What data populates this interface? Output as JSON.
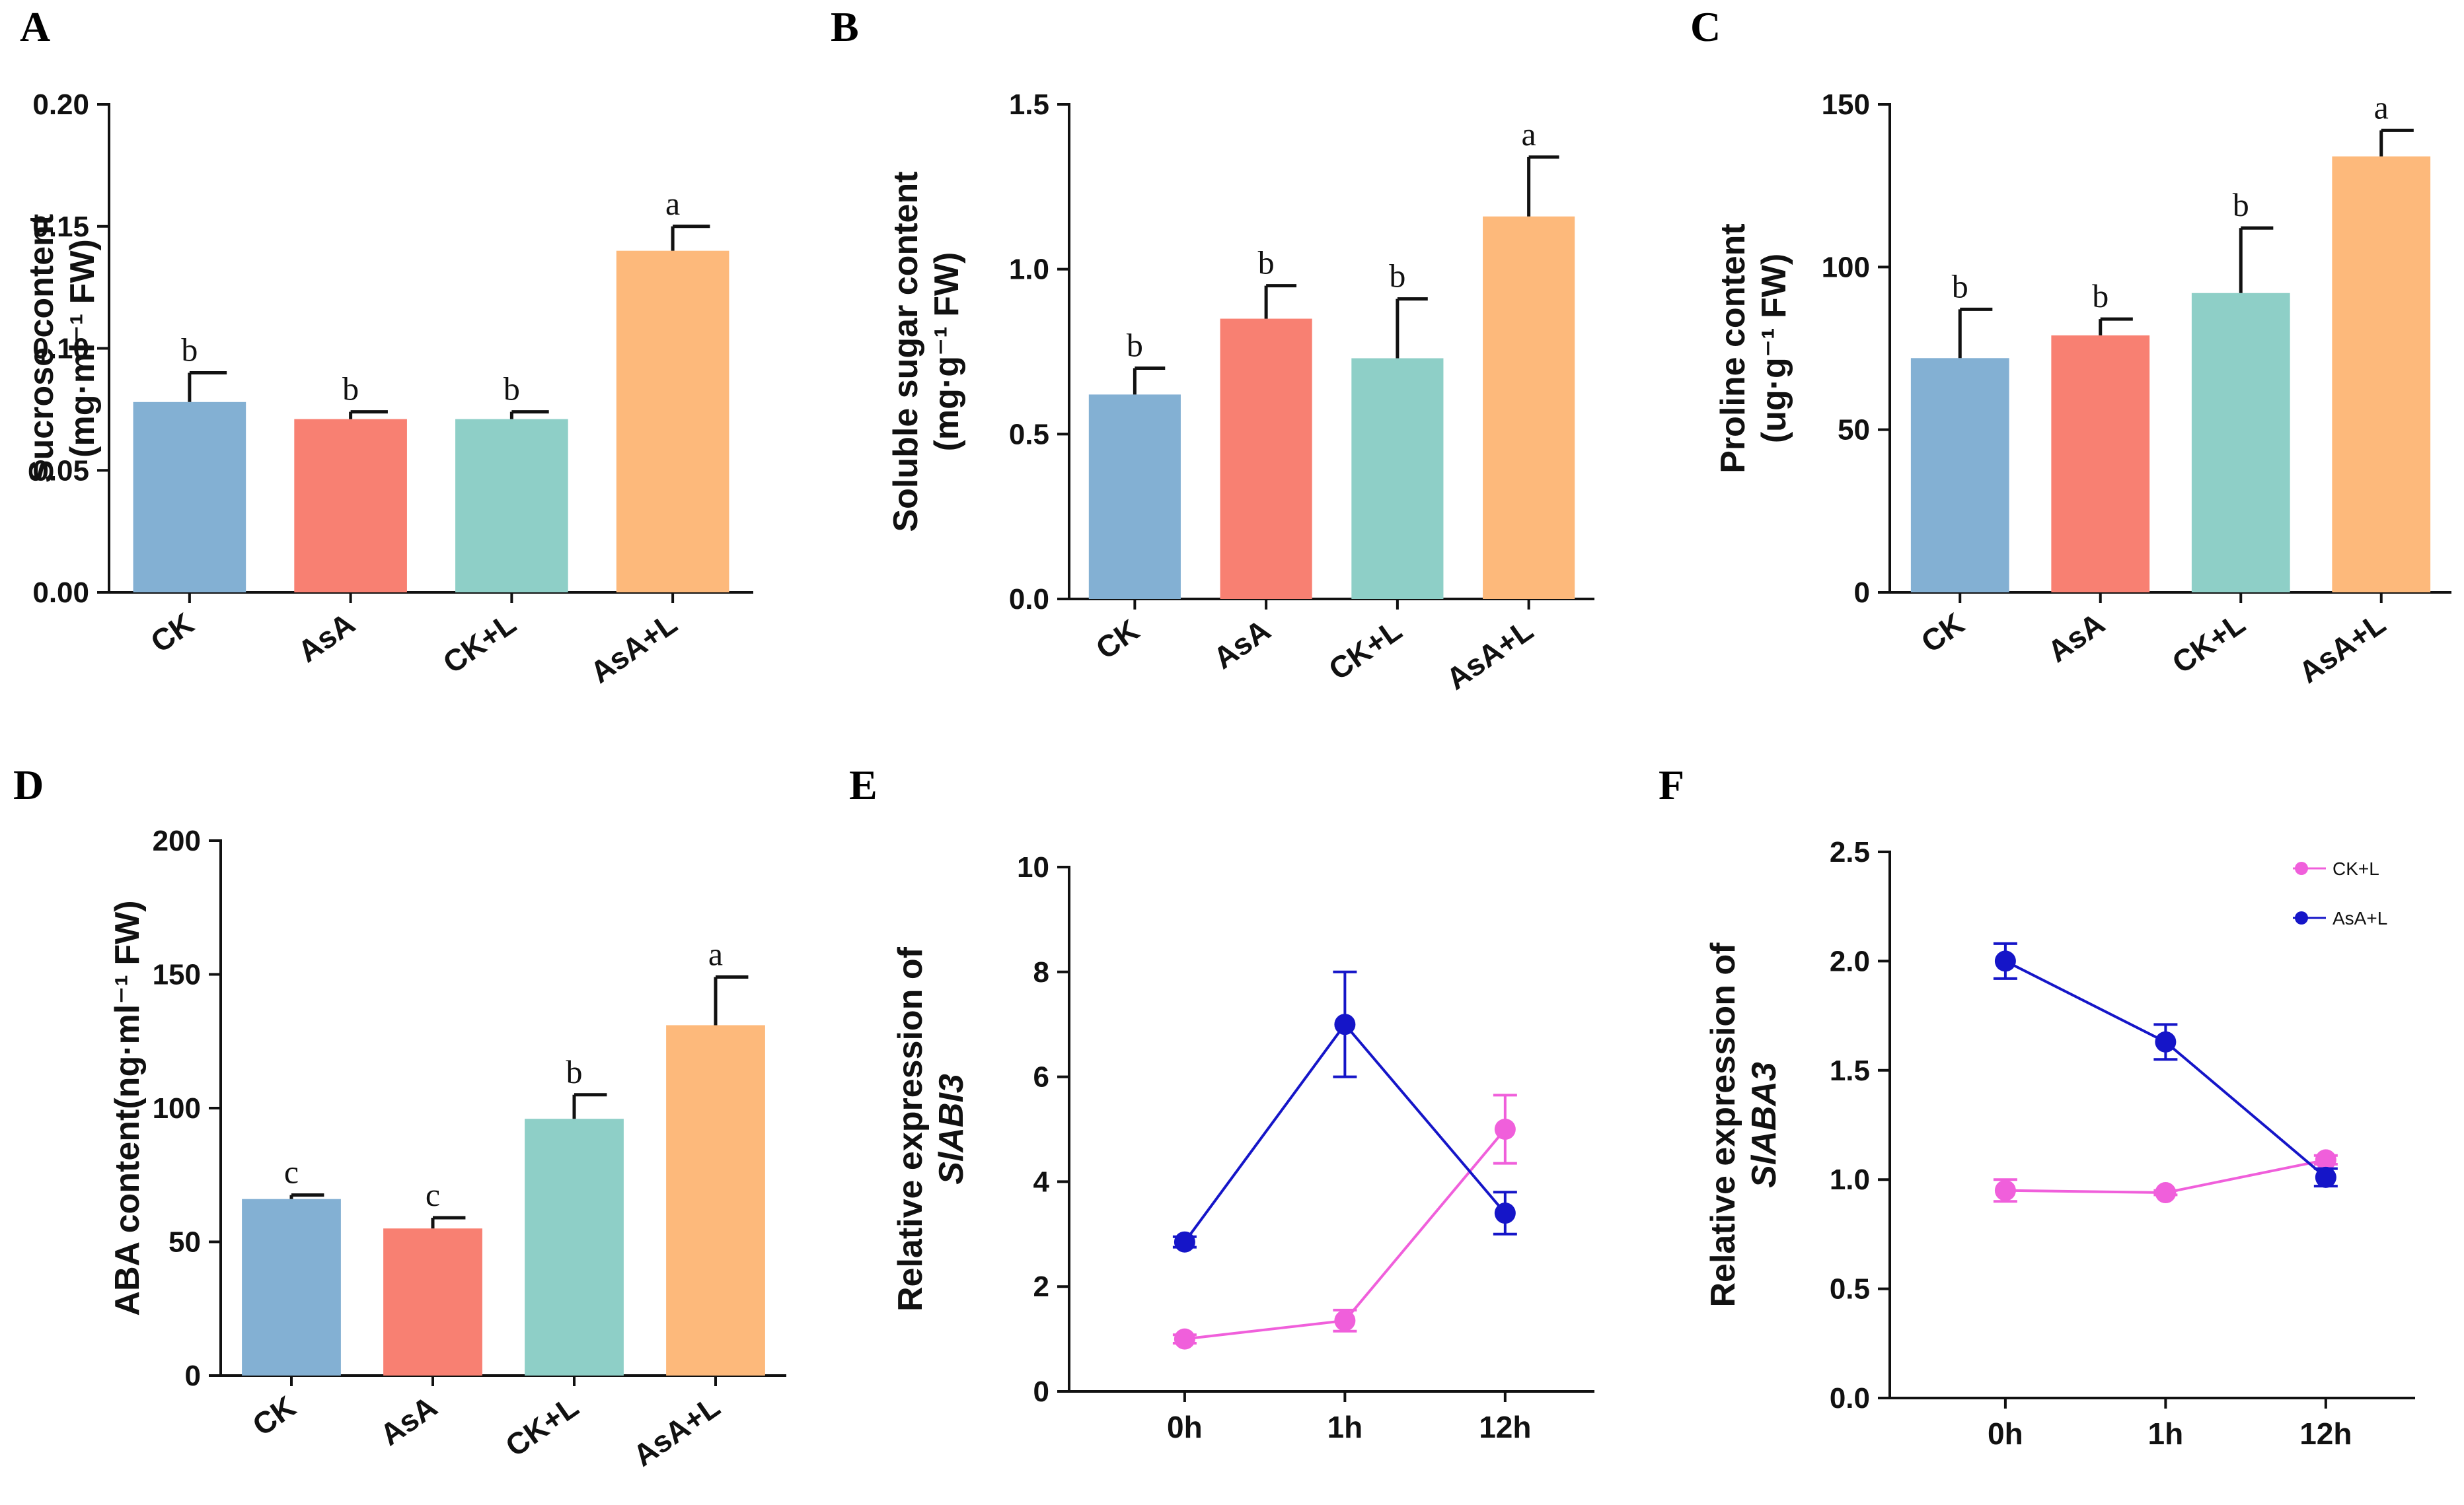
{
  "chart_data": [
    {
      "panel": "A",
      "type": "bar",
      "categories": [
        "CK",
        "AsA",
        "CK+L",
        "AsA+L"
      ],
      "values": [
        0.078,
        0.071,
        0.071,
        0.14
      ],
      "errors": [
        0.012,
        0.003,
        0.003,
        0.01
      ],
      "letters": [
        "b",
        "b",
        "b",
        "a"
      ],
      "ylabel_line1": "Sucrose content",
      "ylabel_line2": "(mg·ml⁻¹ FW)",
      "ylim": [
        0,
        0.2
      ],
      "yticks": [
        "0.00",
        "0.05",
        "0.10",
        "0.15",
        "0.20"
      ],
      "colors": [
        "#83B0D3",
        "#F88072",
        "#8ECFC7",
        "#FDB97B"
      ]
    },
    {
      "panel": "B",
      "type": "bar",
      "categories": [
        "CK",
        "AsA",
        "CK+L",
        "AsA+L"
      ],
      "values": [
        0.62,
        0.85,
        0.73,
        1.16
      ],
      "errors": [
        0.08,
        0.1,
        0.18,
        0.18
      ],
      "letters": [
        "b",
        "b",
        "b",
        "a"
      ],
      "ylabel_line1": "Soluble sugar content",
      "ylabel_line2": "(mg·g⁻¹ FW)",
      "ylim": [
        0,
        1.5
      ],
      "yticks": [
        "0.0",
        "0.5",
        "1.0",
        "1.5"
      ],
      "colors": [
        "#83B0D3",
        "#F88072",
        "#8ECFC7",
        "#FDB97B"
      ]
    },
    {
      "panel": "C",
      "type": "bar",
      "categories": [
        "CK",
        "AsA",
        "CK+L",
        "AsA+L"
      ],
      "values": [
        72,
        79,
        92,
        134
      ],
      "errors": [
        15,
        5,
        20,
        8
      ],
      "letters": [
        "b",
        "b",
        "b",
        "a"
      ],
      "ylabel_line1": "Proline content",
      "ylabel_line2": "(ug·g⁻¹ FW)",
      "ylim": [
        0,
        150
      ],
      "yticks": [
        "0",
        "50",
        "100",
        "150"
      ],
      "colors": [
        "#83B0D3",
        "#F88072",
        "#8ECFC7",
        "#FDB97B"
      ]
    },
    {
      "panel": "D",
      "type": "bar",
      "categories": [
        "CK",
        "AsA",
        "CK+L",
        "AsA+L"
      ],
      "values": [
        66,
        55,
        96,
        131
      ],
      "errors": [
        1.5,
        4,
        9,
        18
      ],
      "letters": [
        "c",
        "c",
        "b",
        "a"
      ],
      "ylabel_line1": "ABA content(ng·ml⁻¹ FW)",
      "ylabel_line2": "",
      "ylim": [
        0,
        200
      ],
      "yticks": [
        "0",
        "50",
        "100",
        "150",
        "200"
      ],
      "colors": [
        "#83B0D3",
        "#F88072",
        "#8ECFC7",
        "#FDB97B"
      ]
    },
    {
      "panel": "E",
      "type": "line",
      "x": [
        "0h",
        "1h",
        "12h"
      ],
      "series": [
        {
          "name": "CK+L",
          "color": "#F05FDB",
          "values": [
            1.0,
            1.35,
            5.0
          ],
          "errors": [
            0.08,
            0.2,
            0.65
          ]
        },
        {
          "name": "AsA+L",
          "color": "#1515C8",
          "values": [
            2.85,
            7.0,
            3.4
          ],
          "errors": [
            0.1,
            1.0,
            0.4
          ]
        }
      ],
      "ylabel_line1": "Relative expression of",
      "ylabel_line2": "SlABI3",
      "ylim": [
        0,
        10
      ],
      "yticks": [
        "0",
        "2",
        "4",
        "6",
        "8",
        "10"
      ]
    },
    {
      "panel": "F",
      "type": "line",
      "x": [
        "0h",
        "1h",
        "12h"
      ],
      "series": [
        {
          "name": "CK+L",
          "color": "#F05FDB",
          "values": [
            0.95,
            0.94,
            1.09
          ],
          "errors": [
            0.05,
            0.01,
            0.02
          ]
        },
        {
          "name": "AsA+L",
          "color": "#1515C8",
          "values": [
            2.0,
            1.63,
            1.01
          ],
          "errors": [
            0.08,
            0.08,
            0.04
          ]
        }
      ],
      "ylabel_line1": "Relative expression of",
      "ylabel_line2": "SlABA3",
      "ylim": [
        0,
        2.5
      ],
      "yticks": [
        "0.0",
        "0.5",
        "1.0",
        "1.5",
        "2.0",
        "2.5"
      ],
      "legend": [
        "CK+L",
        "AsA+L"
      ],
      "legend_position": "top-right"
    }
  ]
}
